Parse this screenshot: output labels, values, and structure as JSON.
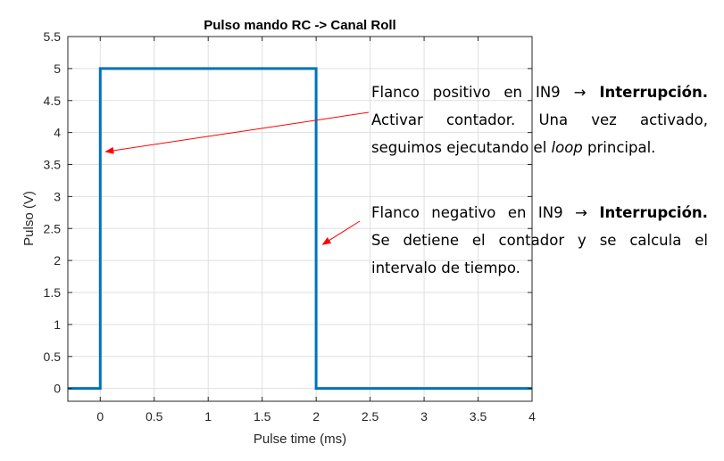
{
  "chart_data": {
    "type": "line",
    "title": "Pulso mando RC -> Canal Roll",
    "xlabel": "Pulse time (ms)",
    "ylabel": "Pulso (V)",
    "xlim": [
      -0.3,
      4
    ],
    "ylim": [
      -0.2,
      5.5
    ],
    "xticks": [
      "0",
      "0.5",
      "1",
      "1.5",
      "2",
      "2.5",
      "3",
      "3.5",
      "4"
    ],
    "yticks": [
      "0",
      "0.5",
      "1",
      "1.5",
      "2",
      "2.5",
      "3",
      "3.5",
      "4",
      "4.5",
      "5",
      "5.5"
    ],
    "grid": true,
    "series": [
      {
        "color": "#0072BD",
        "x": [
          -0.3,
          0,
          0,
          2,
          2,
          4
        ],
        "y": [
          0,
          0,
          5,
          5,
          0,
          0
        ]
      }
    ],
    "annotations": [
      {
        "lines": [
          [
            "Flanco",
            "positivo",
            "en",
            "IN9",
            "→",
            "Interrupción."
          ],
          [
            "Activar",
            "contador.",
            "Una",
            "vez",
            "activado,"
          ],
          [
            "seguimos ejecutando el ",
            "loop",
            " principal."
          ]
        ],
        "arrow_target": [
          0.05,
          3.7
        ]
      },
      {
        "lines": [
          [
            "Flanco",
            "negativo",
            "en",
            "IN9",
            "→",
            "Interrupción."
          ],
          [
            "Se",
            "detiene",
            "el",
            "contador",
            "y",
            "se",
            "calcula",
            "el"
          ],
          [
            "intervalo de tiempo."
          ]
        ],
        "arrow_target": [
          2.06,
          2.25
        ]
      }
    ],
    "arrow_color": "#ff0000"
  }
}
